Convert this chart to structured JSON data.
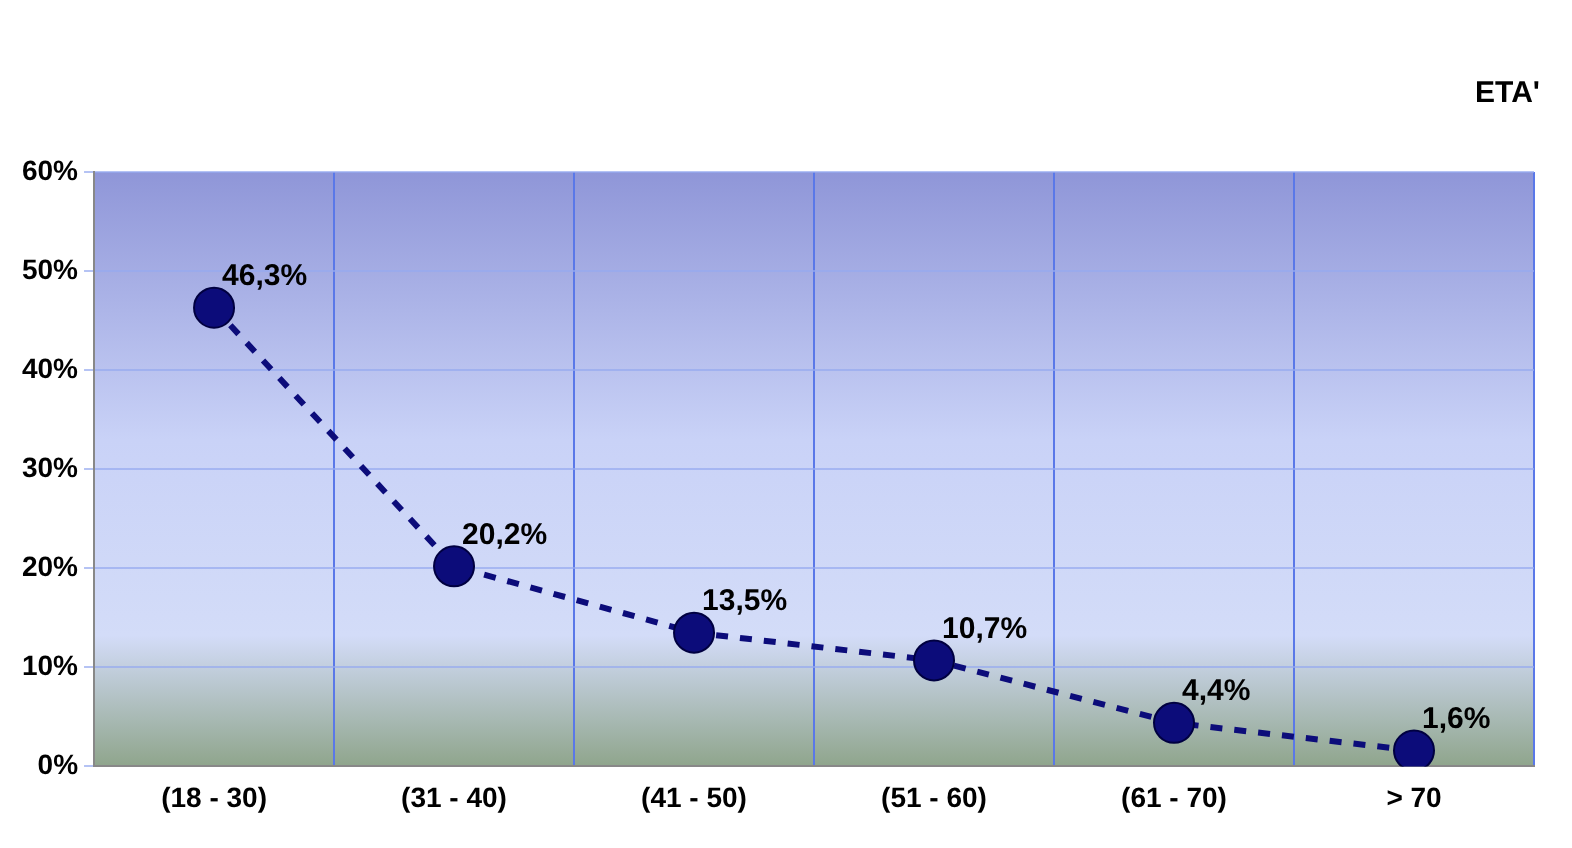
{
  "chart_data": {
    "type": "line",
    "title": "ETA'",
    "categories": [
      "(18 - 30)",
      "(31 - 40)",
      "(41 - 50)",
      "(51 - 60)",
      "(61 - 70)",
      "> 70"
    ],
    "series": [
      {
        "color": "#0c0c7a",
        "values": [
          46.3,
          20.2,
          13.5,
          10.7,
          4.4,
          1.6
        ],
        "value_labels": [
          "46,3%",
          "20,2%",
          "13,5%",
          "10,7%",
          "4,4%",
          "1,6%"
        ]
      }
    ],
    "ylim": [
      0,
      60
    ],
    "yticks": [
      {
        "value": 0,
        "label": "0%"
      },
      {
        "value": 10,
        "label": "10%"
      },
      {
        "value": 20,
        "label": "20%"
      },
      {
        "value": 30,
        "label": "30%"
      },
      {
        "value": 40,
        "label": "40%"
      },
      {
        "value": 50,
        "label": "50%"
      },
      {
        "value": 60,
        "label": "60%"
      }
    ],
    "grid": true,
    "legend": false,
    "marker": "circle",
    "line_style": "dashed"
  }
}
